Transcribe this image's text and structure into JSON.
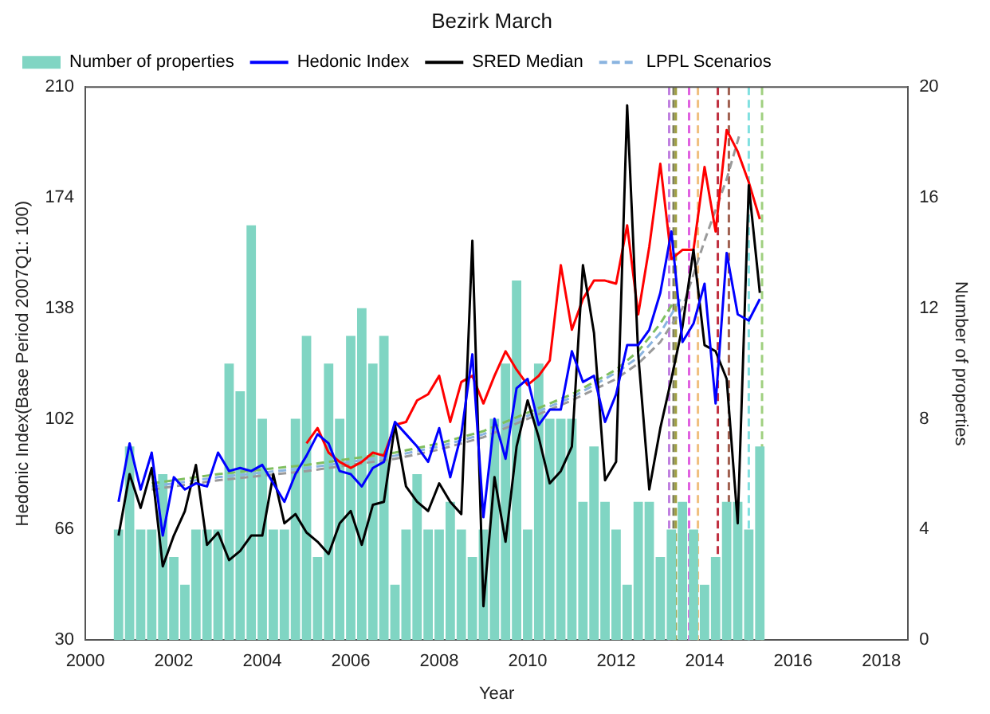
{
  "chart_data": {
    "type": "line",
    "title": "Bezirk March",
    "xlabel": "Year",
    "ylabel": "Hedonic Index(Base Period 2007Q1: 100)",
    "y2label": "Number of properties",
    "x": [
      2000.75,
      2001,
      2001.25,
      2001.5,
      2001.75,
      2002,
      2002.25,
      2002.5,
      2002.75,
      2003,
      2003.25,
      2003.5,
      2003.75,
      2004,
      2004.25,
      2004.5,
      2004.75,
      2005,
      2005.25,
      2005.5,
      2005.75,
      2006,
      2006.25,
      2006.5,
      2006.75,
      2007,
      2007.25,
      2007.5,
      2007.75,
      2008,
      2008.25,
      2008.5,
      2008.75,
      2009,
      2009.25,
      2009.5,
      2009.75,
      2010,
      2010.25,
      2010.5,
      2010.75,
      2011,
      2011.25,
      2011.5,
      2011.75,
      2012,
      2012.25,
      2012.5,
      2012.75,
      2013,
      2013.25,
      2013.5,
      2013.75,
      2014,
      2014.25,
      2014.5,
      2014.75,
      2015,
      2015.25
    ],
    "series": [
      {
        "name": "Number of properties",
        "type": "bar",
        "axis": "y2",
        "color": "#80d5c3",
        "values": [
          4,
          7,
          4,
          4,
          6,
          3,
          2,
          4,
          4,
          4,
          10,
          9,
          15,
          8,
          4,
          4,
          8,
          11,
          3,
          10,
          8,
          11,
          12,
          10,
          11,
          2,
          4,
          6,
          4,
          4,
          5,
          4,
          3,
          4,
          8,
          10,
          13,
          4,
          10,
          8,
          8,
          8,
          5,
          7,
          5,
          4,
          2,
          5,
          5,
          3,
          4,
          5,
          4,
          2,
          3,
          5,
          5,
          4,
          7
        ]
      },
      {
        "name": "Hedonic Index",
        "color": "#0000ff",
        "values": [
          75,
          94,
          79,
          91,
          64,
          83,
          79,
          81,
          80,
          91,
          85,
          86,
          85,
          87,
          81,
          75,
          84,
          90,
          97,
          94,
          85,
          84,
          80,
          86,
          88,
          101,
          97,
          93,
          88,
          99,
          83,
          97,
          123,
          70,
          102,
          89,
          112,
          115,
          100,
          105,
          105,
          124,
          114,
          116,
          101,
          110,
          126,
          126,
          131,
          143,
          163,
          127,
          133,
          146,
          107,
          156,
          136,
          134,
          141
        ]
      },
      {
        "name": "SRED Median",
        "color": "#000000",
        "values": [
          64,
          84,
          73,
          86,
          54,
          64,
          72,
          87,
          61,
          65,
          56,
          59,
          64,
          64,
          84,
          68,
          71,
          65,
          62,
          58,
          68,
          72,
          61,
          74,
          75,
          100,
          80,
          75,
          72,
          81,
          75,
          71,
          160,
          41,
          83,
          62,
          93,
          108,
          96,
          81,
          85,
          93,
          152,
          130,
          82,
          88,
          204,
          123,
          79,
          99,
          115,
          132,
          157,
          126,
          124,
          115,
          68,
          178,
          143
        ]
      },
      {
        "color": "#ff0000",
        "values": [
          null,
          null,
          null,
          null,
          null,
          null,
          null,
          null,
          null,
          null,
          null,
          null,
          null,
          null,
          null,
          null,
          null,
          94,
          99,
          91,
          88,
          86,
          88,
          91,
          90,
          100,
          101,
          108,
          110,
          116,
          101,
          114,
          116,
          107,
          116,
          124,
          118,
          113,
          116,
          121,
          152,
          131,
          141,
          147,
          147,
          146,
          165,
          136,
          158,
          185,
          154,
          157,
          157,
          184,
          163,
          196,
          189,
          179,
          167
        ]
      },
      {
        "name": "LPPL Scenarios",
        "color": "#8ab4e0",
        "line_style": "dashed",
        "x": [
          2001.5,
          2003,
          2005,
          2007,
          2008,
          2009,
          2010,
          2011,
          2012,
          2012.5,
          2013,
          2013.5
        ],
        "values": [
          80,
          83,
          86,
          90,
          93,
          97,
          103,
          109,
          117,
          122,
          130,
          142
        ]
      },
      {
        "color": "#9a9a9a",
        "line_style": "dashed",
        "x": [
          2001.5,
          2003,
          2005,
          2007,
          2008,
          2009,
          2010,
          2011,
          2012,
          2012.5,
          2013,
          2013.5,
          2014,
          2014.5,
          2014.8
        ],
        "values": [
          79,
          82,
          85,
          89,
          92,
          96,
          102,
          108,
          115,
          120,
          127,
          138,
          160,
          180,
          195
        ]
      },
      {
        "color": "#7fbf5f",
        "line_style": "dashed",
        "x": [
          2001.5,
          2003,
          2005,
          2007,
          2008,
          2009,
          2010,
          2011,
          2012,
          2012.5,
          2013,
          2013.3
        ],
        "values": [
          81,
          84,
          87,
          91,
          94,
          98,
          104,
          110,
          118,
          124,
          133,
          140
        ]
      }
    ],
    "ref_lines": [
      {
        "axis": "x",
        "value": 2013.2,
        "color": "#c080e0"
      },
      {
        "axis": "x",
        "value": 2013.3,
        "color": "#808060"
      },
      {
        "axis": "x",
        "value": 2013.35,
        "color": "#a0a040"
      },
      {
        "axis": "x",
        "value": 2013.65,
        "color": "#e060e0"
      },
      {
        "axis": "x",
        "value": 2013.85,
        "color": "#f0c080"
      },
      {
        "axis": "x",
        "value": 2014.3,
        "color": "#c03040"
      },
      {
        "axis": "x",
        "value": 2014.55,
        "color": "#a06050"
      },
      {
        "axis": "x",
        "value": 2015,
        "color": "#80e0e0"
      },
      {
        "axis": "x",
        "value": 2015.3,
        "color": "#a0d080"
      }
    ],
    "xlim": [
      2000,
      2018.6
    ],
    "xticks": [
      2000,
      2002,
      2004,
      2006,
      2008,
      2010,
      2012,
      2014,
      2016,
      2018
    ],
    "ylim": [
      30,
      210
    ],
    "yticks": [
      30,
      66,
      102,
      138,
      174,
      210
    ],
    "y2lim": [
      0,
      20
    ],
    "y2ticks": [
      0,
      4,
      8,
      12,
      16,
      20
    ],
    "grid": false,
    "legend": "top left",
    "marker": "none"
  }
}
